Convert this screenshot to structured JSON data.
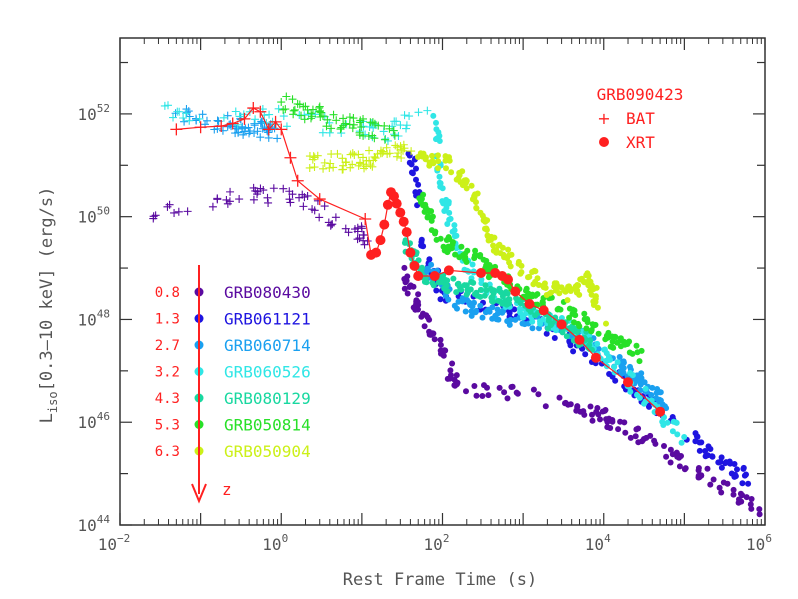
{
  "chart_data": {
    "type": "scatter",
    "xlabel": "Rest Frame Time (s)",
    "ylabel_main": "L",
    "ylabel_sub": "iso",
    "ylabel_rest": "[0.3–10 keV] (erg/s)",
    "xscale": "log",
    "yscale": "log",
    "xlim": [
      0.01,
      1000000
    ],
    "ylim": [
      1e+44,
      3e+53
    ],
    "x_ticks": [
      {
        "v": 0.01,
        "base": "10",
        "exp": "−2"
      },
      {
        "v": 1,
        "base": "10",
        "exp": "0"
      },
      {
        "v": 100,
        "base": "10",
        "exp": "2"
      },
      {
        "v": 10000,
        "base": "10",
        "exp": "4"
      },
      {
        "v": 1000000,
        "base": "10",
        "exp": "6"
      }
    ],
    "y_ticks": [
      {
        "v": 1e+44,
        "base": "10",
        "exp": "44"
      },
      {
        "v": 1e+46,
        "base": "10",
        "exp": "46"
      },
      {
        "v": 1e+48,
        "base": "10",
        "exp": "48"
      },
      {
        "v": 1e+50,
        "base": "10",
        "exp": "50"
      },
      {
        "v": 1e+52,
        "base": "10",
        "exp": "52"
      }
    ],
    "highlight": {
      "name": "GRB090423",
      "color": "#ff2020",
      "bat_label": "BAT",
      "xrt_label": "XRT",
      "bat_points": [
        [
          0.05,
          5e+51
        ],
        [
          0.1,
          5.5e+51
        ],
        [
          0.18,
          5.8e+51
        ],
        [
          0.25,
          6.5e+51
        ],
        [
          0.35,
          8e+51
        ],
        [
          0.45,
          1.3e+52
        ],
        [
          0.55,
          1.1e+52
        ],
        [
          0.7,
          5e+51
        ],
        [
          0.85,
          7e+51
        ],
        [
          1.0,
          5e+51
        ],
        [
          1.3,
          1.4e+51
        ],
        [
          1.6,
          5e+50
        ],
        [
          3.0,
          2.2e+50
        ],
        [
          11,
          9e+49
        ]
      ],
      "xrt_points": [
        [
          13,
          1.8e+49
        ],
        [
          15,
          2e+49
        ],
        [
          17,
          3.5e+49
        ],
        [
          19,
          7e+49
        ],
        [
          21,
          1.7e+50
        ],
        [
          23,
          3e+50
        ],
        [
          25,
          2.5e+50
        ],
        [
          27,
          1.8e+50
        ],
        [
          30,
          1.2e+50
        ],
        [
          33,
          8e+49
        ],
        [
          36,
          5e+49
        ],
        [
          40,
          2e+49
        ],
        [
          45,
          1.1e+49
        ],
        [
          50,
          7e+48
        ],
        [
          80,
          7e+48
        ],
        [
          120,
          9e+48
        ],
        [
          300,
          8e+48
        ],
        [
          450,
          8e+48
        ],
        [
          550,
          7e+48
        ],
        [
          650,
          6e+48
        ],
        [
          800,
          3.5e+48
        ],
        [
          1200,
          2e+48
        ],
        [
          1800,
          1.5e+48
        ],
        [
          3000,
          8e+47
        ],
        [
          5000,
          4e+47
        ],
        [
          8000,
          1.8e+47
        ],
        [
          20000,
          6e+46
        ],
        [
          50000,
          1.6e+46
        ]
      ]
    },
    "series": [
      {
        "name": "GRB080430",
        "z_label": "0.8",
        "color": "#5a0aa0"
      },
      {
        "name": "GRB061121",
        "z_label": "1.3",
        "color": "#1e14e0"
      },
      {
        "name": "GRB060714",
        "z_label": "2.7",
        "color": "#1aa0f0"
      },
      {
        "name": "GRB060526",
        "z_label": "3.2",
        "color": "#30e6e6"
      },
      {
        "name": "GRB080129",
        "z_label": "4.3",
        "color": "#18d8a0"
      },
      {
        "name": "GRB050814",
        "z_label": "5.3",
        "color": "#28e028"
      },
      {
        "name": "GRB050904",
        "z_label": "6.3",
        "color": "#ccf018"
      }
    ],
    "z_arrow_label": "z"
  },
  "colors": {
    "axis": "#333333",
    "label": "#555555",
    "legend_red": "#ff2020"
  }
}
